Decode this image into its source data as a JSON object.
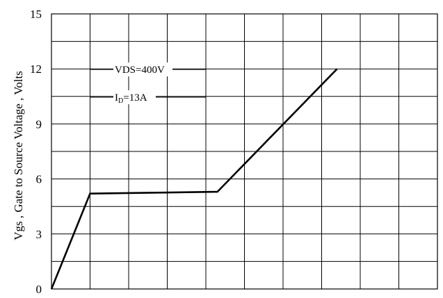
{
  "chart_data": {
    "type": "line",
    "title": "",
    "xlabel": "",
    "ylabel": "Vgs , Gate to Source Voltage , Volts",
    "ylim": [
      0,
      15
    ],
    "xlim": [
      0,
      100
    ],
    "y_ticks": [
      "0",
      "3",
      "6",
      "9",
      "12",
      "15"
    ],
    "grid": true,
    "x_gridlines": 10,
    "y_gridlines": 10,
    "series": [
      {
        "x": [
          0,
          10,
          43,
          74
        ],
        "y": [
          0,
          5.2,
          5.3,
          12.0
        ]
      }
    ],
    "annotations": {
      "vds": "VDS=400V",
      "id_main": "I",
      "id_sub": "D",
      "id_value": "=13A"
    }
  }
}
